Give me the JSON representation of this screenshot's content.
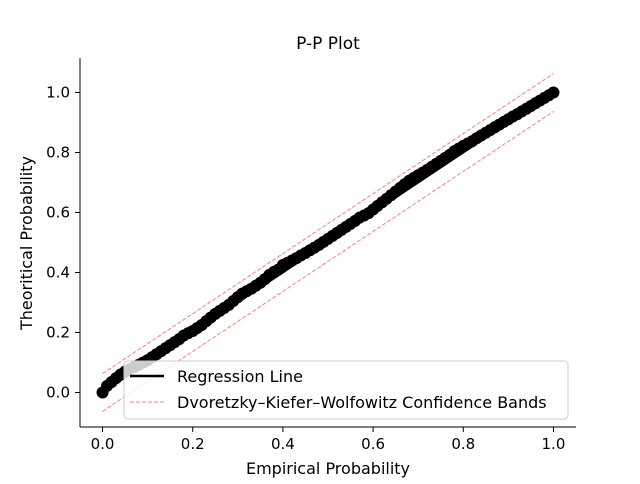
{
  "chart_data": {
    "type": "scatter",
    "title": "P-P Plot",
    "xlabel": "Empirical Probability",
    "ylabel": "Theoritical Probability",
    "xlim": [
      -0.05,
      1.05
    ],
    "ylim": [
      -0.115,
      1.115
    ],
    "x_ticks": [
      0.0,
      0.2,
      0.4,
      0.6,
      0.8,
      1.0
    ],
    "x_tick_labels": [
      "0.0",
      "0.2",
      "0.4",
      "0.6",
      "0.8",
      "1.0"
    ],
    "y_ticks": [
      0.0,
      0.2,
      0.4,
      0.6,
      0.8,
      1.0
    ],
    "y_tick_labels": [
      "0.0",
      "0.2",
      "0.4",
      "0.6",
      "0.8",
      "1.0"
    ],
    "grid": false,
    "legend_position": "lower-right",
    "series": [
      {
        "name": "Regression Line",
        "kind": "line",
        "color": "#000000",
        "x": [
          0,
          1
        ],
        "y": [
          0,
          1
        ]
      },
      {
        "name": "Dvoretzky–Kiefer–Wolfowitz Confidence Bands",
        "kind": "band",
        "color": "#fa8072",
        "x": [
          0,
          1
        ],
        "upper": [
          0.063,
          1.063
        ],
        "lower": [
          -0.063,
          0.937
        ]
      },
      {
        "kind": "points",
        "color": "#000000",
        "x": [
          0.0,
          0.01,
          0.02,
          0.03,
          0.04,
          0.05,
          0.06,
          0.07,
          0.08,
          0.09,
          0.1,
          0.11,
          0.12,
          0.13,
          0.14,
          0.15,
          0.16,
          0.17,
          0.18,
          0.19,
          0.2,
          0.21,
          0.22,
          0.23,
          0.24,
          0.25,
          0.26,
          0.27,
          0.28,
          0.29,
          0.3,
          0.31,
          0.32,
          0.33,
          0.34,
          0.35,
          0.36,
          0.37,
          0.38,
          0.39,
          0.4,
          0.41,
          0.42,
          0.43,
          0.44,
          0.45,
          0.46,
          0.47,
          0.48,
          0.49,
          0.5,
          0.51,
          0.52,
          0.53,
          0.54,
          0.55,
          0.56,
          0.57,
          0.58,
          0.59,
          0.6,
          0.61,
          0.62,
          0.63,
          0.64,
          0.65,
          0.66,
          0.67,
          0.68,
          0.69,
          0.7,
          0.71,
          0.72,
          0.73,
          0.74,
          0.75,
          0.76,
          0.77,
          0.78,
          0.79,
          0.8,
          0.81,
          0.82,
          0.83,
          0.84,
          0.85,
          0.86,
          0.87,
          0.88,
          0.89,
          0.9,
          0.91,
          0.92,
          0.93,
          0.94,
          0.95,
          0.96,
          0.97,
          0.98,
          0.99,
          1.0
        ],
        "y": [
          0.0,
          0.022,
          0.035,
          0.048,
          0.06,
          0.07,
          0.078,
          0.085,
          0.092,
          0.1,
          0.108,
          0.118,
          0.128,
          0.138,
          0.148,
          0.158,
          0.168,
          0.178,
          0.19,
          0.198,
          0.205,
          0.215,
          0.225,
          0.238,
          0.25,
          0.262,
          0.272,
          0.282,
          0.292,
          0.305,
          0.318,
          0.33,
          0.338,
          0.346,
          0.356,
          0.366,
          0.378,
          0.392,
          0.402,
          0.41,
          0.425,
          0.432,
          0.44,
          0.448,
          0.457,
          0.465,
          0.474,
          0.483,
          0.492,
          0.502,
          0.512,
          0.522,
          0.532,
          0.542,
          0.552,
          0.562,
          0.572,
          0.583,
          0.59,
          0.598,
          0.61,
          0.622,
          0.634,
          0.646,
          0.658,
          0.67,
          0.682,
          0.694,
          0.706,
          0.715,
          0.724,
          0.733,
          0.742,
          0.752,
          0.762,
          0.772,
          0.782,
          0.792,
          0.804,
          0.813,
          0.822,
          0.83,
          0.838,
          0.848,
          0.857,
          0.866,
          0.875,
          0.884,
          0.893,
          0.902,
          0.911,
          0.92,
          0.928,
          0.937,
          0.946,
          0.955,
          0.964,
          0.973,
          0.982,
          0.991,
          1.0
        ]
      }
    ]
  }
}
